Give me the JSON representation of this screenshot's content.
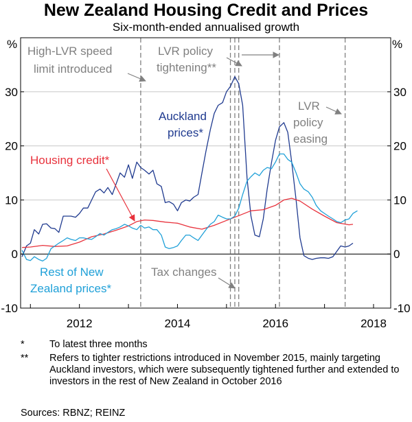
{
  "chart_data": {
    "type": "line",
    "title": "New Zealand Housing Credit and Prices",
    "subtitle": "Six-month-ended annualised growth",
    "unit_left": "%",
    "unit_right": "%",
    "ylim": [
      -10,
      40
    ],
    "yticks": [
      -10,
      0,
      10,
      20,
      30
    ],
    "xlim": [
      2010.8,
      2018.35
    ],
    "xticks": [
      2012,
      2014,
      2016,
      2018
    ],
    "series": [
      {
        "name": "Auckland prices*",
        "color": "#1f3a8f",
        "points": [
          [
            2010.83,
            -0.5
          ],
          [
            2010.92,
            1.5
          ],
          [
            2011.0,
            2.0
          ],
          [
            2011.08,
            4.5
          ],
          [
            2011.17,
            3.7
          ],
          [
            2011.25,
            5.5
          ],
          [
            2011.33,
            5.6
          ],
          [
            2011.42,
            4.8
          ],
          [
            2011.5,
            4.7
          ],
          [
            2011.58,
            4.0
          ],
          [
            2011.67,
            7.0
          ],
          [
            2011.75,
            7.0
          ],
          [
            2011.83,
            7.0
          ],
          [
            2011.92,
            6.8
          ],
          [
            2012.0,
            7.5
          ],
          [
            2012.08,
            8.5
          ],
          [
            2012.17,
            8.5
          ],
          [
            2012.25,
            10.0
          ],
          [
            2012.33,
            11.5
          ],
          [
            2012.42,
            12.0
          ],
          [
            2012.5,
            11.3
          ],
          [
            2012.58,
            12.3
          ],
          [
            2012.67,
            11.0
          ],
          [
            2012.75,
            13.0
          ],
          [
            2012.83,
            15.0
          ],
          [
            2012.92,
            14.2
          ],
          [
            2013.0,
            16.5
          ],
          [
            2013.08,
            14.0
          ],
          [
            2013.17,
            17.0
          ],
          [
            2013.25,
            16.0
          ],
          [
            2013.33,
            15.5
          ],
          [
            2013.42,
            14.8
          ],
          [
            2013.5,
            15.5
          ],
          [
            2013.58,
            13.0
          ],
          [
            2013.67,
            12.5
          ],
          [
            2013.75,
            9.5
          ],
          [
            2013.83,
            9.7
          ],
          [
            2013.92,
            9.2
          ],
          [
            2014.0,
            8.0
          ],
          [
            2014.08,
            9.5
          ],
          [
            2014.17,
            10.0
          ],
          [
            2014.25,
            9.8
          ],
          [
            2014.33,
            10.5
          ],
          [
            2014.42,
            11.0
          ],
          [
            2014.5,
            15.0
          ],
          [
            2014.58,
            19.0
          ],
          [
            2014.67,
            23.0
          ],
          [
            2014.75,
            26.0
          ],
          [
            2014.83,
            27.5
          ],
          [
            2014.92,
            28.0
          ],
          [
            2015.0,
            30.0
          ],
          [
            2015.08,
            31.0
          ],
          [
            2015.17,
            32.8
          ],
          [
            2015.25,
            31.5
          ],
          [
            2015.33,
            27.5
          ],
          [
            2015.42,
            14.0
          ],
          [
            2015.5,
            7.0
          ],
          [
            2015.58,
            3.5
          ],
          [
            2015.67,
            3.2
          ],
          [
            2015.75,
            6.5
          ],
          [
            2015.83,
            12.0
          ],
          [
            2015.92,
            17.0
          ],
          [
            2016.0,
            21.0
          ],
          [
            2016.08,
            23.5
          ],
          [
            2016.17,
            24.3
          ],
          [
            2016.25,
            22.5
          ],
          [
            2016.33,
            17.0
          ],
          [
            2016.42,
            10.0
          ],
          [
            2016.5,
            3.0
          ],
          [
            2016.58,
            -0.3
          ],
          [
            2016.67,
            -0.8
          ],
          [
            2016.75,
            -1.0
          ],
          [
            2016.83,
            -0.8
          ],
          [
            2016.92,
            -0.7
          ],
          [
            2017.0,
            -0.7
          ],
          [
            2017.08,
            -0.8
          ],
          [
            2017.17,
            -0.5
          ],
          [
            2017.25,
            0.5
          ],
          [
            2017.33,
            1.5
          ],
          [
            2017.42,
            1.3
          ],
          [
            2017.5,
            1.5
          ],
          [
            2017.58,
            2.0
          ]
        ]
      },
      {
        "name": "Housing credit*",
        "color": "#e8323c",
        "points": [
          [
            2010.83,
            1.2
          ],
          [
            2011.0,
            1.3
          ],
          [
            2011.25,
            1.6
          ],
          [
            2011.5,
            1.4
          ],
          [
            2011.75,
            1.5
          ],
          [
            2012.0,
            2.2
          ],
          [
            2012.25,
            3.2
          ],
          [
            2012.5,
            3.7
          ],
          [
            2012.75,
            4.4
          ],
          [
            2013.0,
            5.2
          ],
          [
            2013.17,
            6.0
          ],
          [
            2013.33,
            6.3
          ],
          [
            2013.5,
            6.2
          ],
          [
            2013.75,
            5.9
          ],
          [
            2014.0,
            5.7
          ],
          [
            2014.25,
            5.0
          ],
          [
            2014.5,
            4.6
          ],
          [
            2014.75,
            5.3
          ],
          [
            2015.0,
            6.2
          ],
          [
            2015.25,
            7.1
          ],
          [
            2015.5,
            8.0
          ],
          [
            2015.75,
            8.2
          ],
          [
            2016.0,
            9.0
          ],
          [
            2016.17,
            10.0
          ],
          [
            2016.33,
            10.3
          ],
          [
            2016.5,
            9.8
          ],
          [
            2016.75,
            8.3
          ],
          [
            2017.0,
            7.0
          ],
          [
            2017.25,
            5.8
          ],
          [
            2017.5,
            5.4
          ],
          [
            2017.58,
            5.5
          ]
        ]
      },
      {
        "name": "Rest of New Zealand prices*",
        "color": "#1fa0d8",
        "points": [
          [
            2010.83,
            0.7
          ],
          [
            2010.92,
            -1.0
          ],
          [
            2011.0,
            -1.2
          ],
          [
            2011.08,
            -0.5
          ],
          [
            2011.17,
            -1.0
          ],
          [
            2011.25,
            -1.3
          ],
          [
            2011.33,
            -0.8
          ],
          [
            2011.42,
            1.0
          ],
          [
            2011.5,
            1.5
          ],
          [
            2011.58,
            2.0
          ],
          [
            2011.67,
            2.5
          ],
          [
            2011.75,
            3.0
          ],
          [
            2011.83,
            2.7
          ],
          [
            2011.92,
            2.5
          ],
          [
            2012.0,
            3.0
          ],
          [
            2012.08,
            3.0
          ],
          [
            2012.17,
            2.8
          ],
          [
            2012.25,
            2.7
          ],
          [
            2012.33,
            3.2
          ],
          [
            2012.42,
            3.8
          ],
          [
            2012.5,
            3.5
          ],
          [
            2012.58,
            4.0
          ],
          [
            2012.67,
            4.5
          ],
          [
            2012.75,
            4.7
          ],
          [
            2012.83,
            5.0
          ],
          [
            2012.92,
            5.5
          ],
          [
            2013.0,
            5.2
          ],
          [
            2013.08,
            4.8
          ],
          [
            2013.17,
            4.5
          ],
          [
            2013.25,
            5.3
          ],
          [
            2013.33,
            4.8
          ],
          [
            2013.42,
            5.0
          ],
          [
            2013.5,
            4.5
          ],
          [
            2013.58,
            4.5
          ],
          [
            2013.67,
            3.5
          ],
          [
            2013.75,
            1.3
          ],
          [
            2013.83,
            1.0
          ],
          [
            2013.92,
            1.2
          ],
          [
            2014.0,
            1.5
          ],
          [
            2014.08,
            2.5
          ],
          [
            2014.17,
            3.5
          ],
          [
            2014.25,
            3.5
          ],
          [
            2014.33,
            3.0
          ],
          [
            2014.42,
            2.5
          ],
          [
            2014.5,
            3.5
          ],
          [
            2014.58,
            4.5
          ],
          [
            2014.67,
            5.5
          ],
          [
            2014.75,
            6.0
          ],
          [
            2014.83,
            7.2
          ],
          [
            2014.92,
            6.8
          ],
          [
            2015.0,
            6.5
          ],
          [
            2015.08,
            6.5
          ],
          [
            2015.17,
            7.0
          ],
          [
            2015.25,
            8.5
          ],
          [
            2015.33,
            11.0
          ],
          [
            2015.42,
            13.5
          ],
          [
            2015.5,
            14.3
          ],
          [
            2015.58,
            15.0
          ],
          [
            2015.67,
            14.5
          ],
          [
            2015.75,
            15.5
          ],
          [
            2015.83,
            16.0
          ],
          [
            2015.92,
            15.8
          ],
          [
            2016.0,
            17.0
          ],
          [
            2016.08,
            18.5
          ],
          [
            2016.17,
            18.5
          ],
          [
            2016.25,
            17.5
          ],
          [
            2016.33,
            17.0
          ],
          [
            2016.42,
            15.0
          ],
          [
            2016.5,
            13.0
          ],
          [
            2016.58,
            12.0
          ],
          [
            2016.67,
            11.5
          ],
          [
            2016.75,
            10.5
          ],
          [
            2016.83,
            9.0
          ],
          [
            2016.92,
            8.0
          ],
          [
            2017.0,
            7.5
          ],
          [
            2017.08,
            7.0
          ],
          [
            2017.17,
            6.5
          ],
          [
            2017.25,
            6.0
          ],
          [
            2017.33,
            5.8
          ],
          [
            2017.42,
            6.3
          ],
          [
            2017.5,
            6.5
          ],
          [
            2017.58,
            7.5
          ],
          [
            2017.67,
            8.0
          ]
        ]
      }
    ],
    "vertical_lines": [
      2013.25,
      2015.08,
      2015.17,
      2015.25,
      2016.08,
      2017.42
    ],
    "annotations": {
      "high_lvr": [
        "High-LVR speed",
        "limit introduced"
      ],
      "lvr_tightening": [
        "LVR policy",
        "tightening**"
      ],
      "lvr_easing": [
        "LVR",
        "policy",
        "easing"
      ],
      "tax_changes": [
        "Tax changes"
      ]
    },
    "series_labels": {
      "auckland": [
        "Auckland",
        "prices*"
      ],
      "credit": [
        "Housing credit*"
      ],
      "rest": [
        "Rest of New",
        "Zealand prices*"
      ]
    }
  },
  "notes": [
    {
      "mark": "*",
      "text": "To latest three months"
    },
    {
      "mark": "**",
      "text": "Refers to tighter restrictions introduced in November 2015, mainly targeting Auckland investors, which were subsequently tightened further and extended to investors in the rest of New Zealand in October 2016"
    }
  ],
  "sources": "Sources: RBNZ; REINZ"
}
